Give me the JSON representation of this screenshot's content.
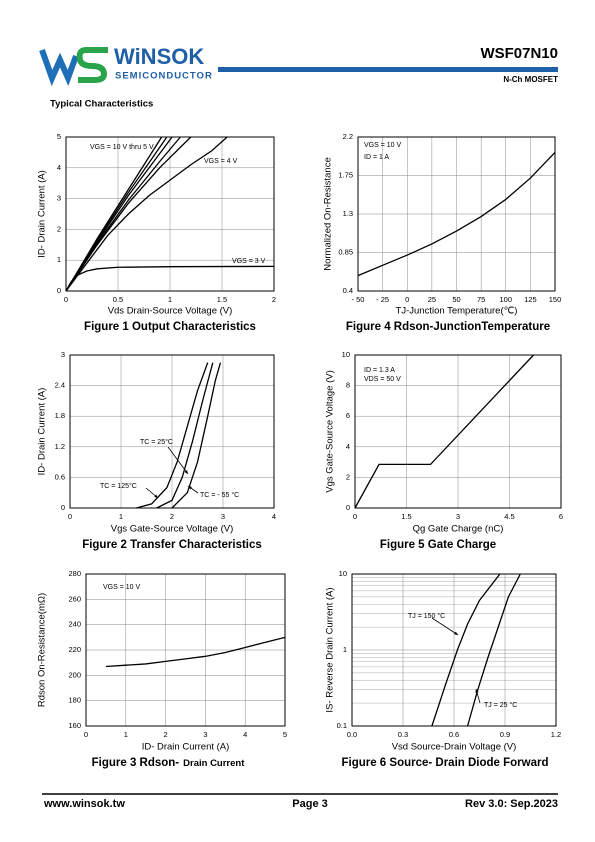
{
  "header": {
    "brand": "WiNSOK",
    "brand_sub": "SEMICONDUCTOR",
    "part": "WSF07N10",
    "device": "N-Ch MOSFET"
  },
  "section_title": "Typical Characteristics",
  "chart_data": [
    {
      "type": "line",
      "caption": "Figure 1 Output Characteristics",
      "xlabel": "Vds Drain-Source Voltage (V)",
      "ylabel": "ID- Drain Current (A)",
      "xlim": [
        0,
        2
      ],
      "xticks": [
        0,
        0.5,
        1,
        1.5,
        2
      ],
      "ylim": [
        0,
        5
      ],
      "yticks": [
        0,
        1,
        2,
        3,
        4,
        5
      ],
      "grid": true,
      "color": "#000000",
      "annotations": [
        "VGS = 10 V thru 5 V",
        "VGS = 4 V",
        "VGS = 3 V"
      ],
      "series": [
        {
          "x": [
            0,
            0.3,
            0.6,
            0.92
          ],
          "values": [
            0,
            1.7,
            3.3,
            5
          ]
        },
        {
          "x": [
            0,
            0.3,
            0.6,
            0.97
          ],
          "values": [
            0,
            1.65,
            3.2,
            5
          ]
        },
        {
          "x": [
            0,
            0.3,
            0.6,
            1.02
          ],
          "values": [
            0,
            1.6,
            3.1,
            5
          ]
        },
        {
          "x": [
            0,
            0.3,
            0.6,
            0.9,
            1.1
          ],
          "values": [
            0,
            1.55,
            2.95,
            4.2,
            5
          ]
        },
        {
          "x": [
            0,
            0.3,
            0.6,
            0.9,
            1.2
          ],
          "values": [
            0,
            1.5,
            2.85,
            4.0,
            5
          ]
        },
        {
          "x": [
            0,
            0.2,
            0.4,
            0.6,
            0.8,
            1,
            1.2,
            1.4,
            1.55
          ],
          "values": [
            0,
            0.9,
            1.8,
            2.5,
            3.1,
            3.6,
            4.1,
            4.55,
            5
          ]
        },
        {
          "x": [
            0,
            0.05,
            0.1,
            0.2,
            0.3,
            0.5,
            1,
            2
          ],
          "values": [
            0,
            0.3,
            0.5,
            0.65,
            0.72,
            0.77,
            0.79,
            0.8
          ]
        }
      ]
    },
    {
      "type": "line",
      "caption": "Figure 4 Rdson-JunctionTemperature",
      "xlabel": "TJ-Junction Temperature(℃)",
      "ylabel": "Normalized On-Resistance",
      "xlim": [
        -50,
        150
      ],
      "xticks": [
        {
          "value": -50,
          "label": "- 50"
        },
        {
          "value": -25,
          "label": "- 25"
        },
        0,
        25,
        50,
        75,
        100,
        125,
        150
      ],
      "ylim": [
        0.4,
        2.2
      ],
      "yticks": [
        0.4,
        0.85,
        1.3,
        1.75,
        2.2
      ],
      "grid": true,
      "color": "#000000",
      "annotations": [
        "VGS = 10 V",
        "ID = 1 A"
      ],
      "series": [
        {
          "x": [
            -50,
            -25,
            0,
            25,
            50,
            75,
            100,
            125,
            150
          ],
          "values": [
            0.58,
            0.7,
            0.82,
            0.95,
            1.1,
            1.27,
            1.47,
            1.72,
            2.02
          ]
        }
      ]
    },
    {
      "type": "line",
      "caption": "Figure 2 Transfer Characteristics",
      "xlabel": "Vgs Gate-Source Voltage (V)",
      "ylabel": "ID- Drain Current (A)",
      "xlim": [
        0,
        4
      ],
      "xticks": [
        0,
        1,
        2,
        3,
        4
      ],
      "ylim": [
        0,
        3
      ],
      "yticks": [
        0,
        0.6,
        1.2,
        1.8,
        2.4,
        3
      ],
      "grid": true,
      "color": "#000000",
      "annotations": [
        "TC = 25°C",
        "TC = 125°C",
        "TC = - 55 °C"
      ],
      "series": [
        {
          "x": [
            1.3,
            1.6,
            1.9,
            2.1,
            2.3,
            2.5,
            2.7
          ],
          "values": [
            0,
            0.08,
            0.4,
            0.9,
            1.6,
            2.3,
            2.85
          ]
        },
        {
          "x": [
            1.7,
            2.0,
            2.2,
            2.4,
            2.6,
            2.8
          ],
          "values": [
            0,
            0.15,
            0.6,
            1.3,
            2.1,
            2.85
          ]
        },
        {
          "x": [
            2.0,
            2.3,
            2.5,
            2.7,
            2.85,
            2.95
          ],
          "values": [
            0,
            0.3,
            0.9,
            1.8,
            2.5,
            2.85
          ]
        }
      ]
    },
    {
      "type": "line",
      "caption": "Figure 5 Gate Charge",
      "xlabel": "Qg Gate Charge (nC)",
      "ylabel": "Vgs Gate-Source Voltage (V)",
      "xlim": [
        0,
        6
      ],
      "xticks": [
        0,
        1.5,
        3,
        4.5,
        6
      ],
      "ylim": [
        0,
        10
      ],
      "yticks": [
        0,
        2,
        4,
        6,
        8,
        10
      ],
      "grid": true,
      "color": "#000000",
      "annotations": [
        "ID = 1.3 A",
        "VDS = 50 V"
      ],
      "series": [
        {
          "x": [
            0,
            0.7,
            2.2,
            5.2
          ],
          "values": [
            0,
            2.85,
            2.85,
            10
          ]
        }
      ]
    },
    {
      "type": "line",
      "caption": [
        "Figure 3 Rdson-",
        "Drain Current"
      ],
      "xlabel": "ID- Drain Current (A)",
      "ylabel": "Rdson On-Resistance(mΩ)",
      "xlim": [
        0,
        5
      ],
      "xticks": [
        0,
        1,
        2,
        3,
        4,
        5
      ],
      "ylim": [
        160,
        280
      ],
      "yticks": [
        160,
        180,
        200,
        220,
        240,
        260,
        280
      ],
      "grid": true,
      "color": "#000000",
      "annotations": [
        "VGS = 10 V"
      ],
      "series": [
        {
          "x": [
            0.5,
            1,
            1.5,
            2,
            2.5,
            3,
            3.5,
            4,
            4.5,
            5
          ],
          "values": [
            207,
            208,
            209,
            211,
            213,
            215,
            218,
            222,
            226,
            230
          ]
        }
      ]
    },
    {
      "type": "line",
      "caption": "Figure 6 Source- Drain Diode Forward",
      "xlabel": "Vsd Source-Drain Voltage (V)",
      "ylabel": "IS- Reverse Drain Current (A)",
      "xlim": [
        0,
        1.2
      ],
      "xticks": [
        {
          "value": 0,
          "label": "0.0"
        },
        0.3,
        0.6,
        0.9,
        1.2
      ],
      "ylim": [
        0.1,
        10
      ],
      "yticks": [
        0.1,
        1,
        10
      ],
      "log_y": true,
      "grid": true,
      "color": "#000000",
      "annotations": [
        "TJ = 150 °C",
        "TJ = 25 °C"
      ],
      "series": [
        {
          "x": [
            0.47,
            0.55,
            0.62,
            0.68,
            0.75,
            0.87
          ],
          "values": [
            0.1,
            0.35,
            1,
            2.2,
            4.5,
            10
          ]
        },
        {
          "x": [
            0.68,
            0.74,
            0.8,
            0.86,
            0.92,
            0.99
          ],
          "values": [
            0.1,
            0.3,
            0.8,
            2,
            5,
            10
          ]
        }
      ]
    }
  ],
  "footer": {
    "website": "www.winsok.tw",
    "page": "Page 3",
    "revision": "Rev 3.0: Sep.2023"
  }
}
